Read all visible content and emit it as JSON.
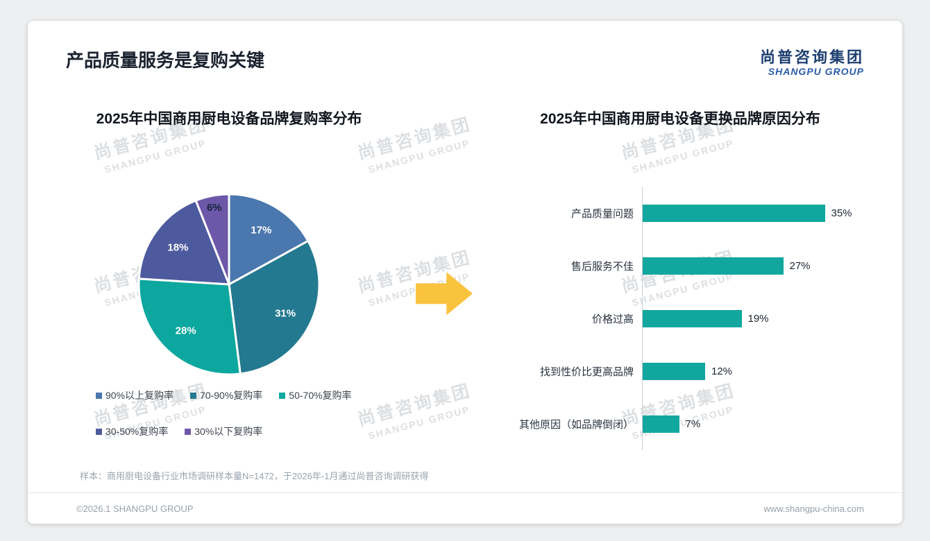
{
  "header": {
    "title": "产品质量服务是复购关键",
    "logo_cn": "尚普咨询集团",
    "logo_en": "SHANGPU GROUP"
  },
  "watermark": {
    "line1": "尚普咨询集团",
    "line2": "SHANGPU GROUP"
  },
  "arrow_color": "#fac33e",
  "chart_data": [
    {
      "type": "pie",
      "title": "2025年中国商用厨电设备品牌复购率分布",
      "categories": [
        "90%以上复购率",
        "70-90%复购率",
        "50-70%复购率",
        "30-50%复购率",
        "30%以下复购率"
      ],
      "values": [
        17,
        31,
        28,
        18,
        6
      ],
      "data_labels": [
        "17%",
        "31%",
        "28%",
        "18%",
        "6%"
      ],
      "colors": [
        "#4a77ad",
        "#23798f",
        "#0ca79e",
        "#4d5a9d",
        "#6d57a8"
      ],
      "label_text_colors": [
        "#ffffff",
        "#ffffff",
        "#ffffff",
        "#ffffff",
        "#17253f"
      ],
      "legend_position": "bottom",
      "start_angle_deg": 0
    },
    {
      "type": "bar",
      "orientation": "horizontal",
      "title": "2025年中国商用厨电设备更换品牌原因分布",
      "categories": [
        "产品质量问题",
        "售后服务不佳",
        "价格过高",
        "找到性价比更高品牌",
        "其他原因（如品牌倒闭）"
      ],
      "values": [
        35,
        27,
        19,
        12,
        7
      ],
      "data_labels": [
        "35%",
        "27%",
        "19%",
        "12%",
        "7%"
      ],
      "bar_color": "#12a79e",
      "xlim": [
        0,
        40
      ],
      "grid": false,
      "axis_line_color": "#c9cfd6"
    }
  ],
  "footnote": "样本：商用厨电设备行业市场调研样本量N=1472，于2026年-1月通过尚普咨询调研获得",
  "footer": {
    "left": "©2026.1 SHANGPU GROUP",
    "right": "www.shangpu-china.com"
  }
}
